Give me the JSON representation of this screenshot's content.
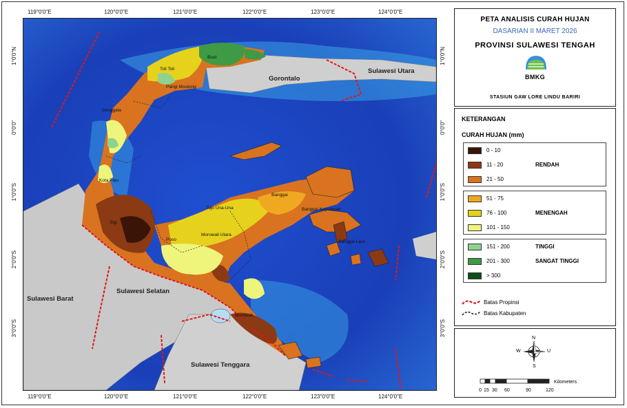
{
  "title": {
    "line1": "PETA ANALISIS CURAH HUJAN",
    "line2": "DASARIAN II MARET 2026",
    "line3": "PROVINSI SULAWESI TENGAH",
    "agency": "BMKG",
    "station": "STASIUN GAW LORE LINDU BARIRI"
  },
  "legend": {
    "heading": "KETERANGAN",
    "subheading": "CURAH HUJAN (mm)",
    "groups": [
      {
        "category": "RENDAH",
        "classes": [
          {
            "label": "0 - 10",
            "color": "#3b1408"
          },
          {
            "label": "11 - 20",
            "color": "#8b3a13"
          },
          {
            "label": "21 - 50",
            "color": "#d9731f"
          }
        ]
      },
      {
        "category": "MENENGAH",
        "classes": [
          {
            "label": "51 - 75",
            "color": "#f0a820"
          },
          {
            "label": "76 - 100",
            "color": "#e6d21c"
          },
          {
            "label": "101 - 150",
            "color": "#eef57a"
          }
        ]
      },
      {
        "category": "TINGGI",
        "classes": [
          {
            "label": "151 - 200",
            "color": "#8fd28f"
          }
        ]
      },
      {
        "category": "SANGAT TINGGI",
        "classes": [
          {
            "label": "201 - 300",
            "color": "#3f9a45"
          },
          {
            "label": "> 300",
            "color": "#0e4d17"
          }
        ]
      }
    ],
    "province_line": "Batas Propinsi",
    "district_line": "Batas Kabupaten"
  },
  "scalebar": {
    "unit": "Kilometers",
    "ticks": [
      "0",
      "15",
      "30",
      "60",
      "90",
      "120"
    ],
    "compass": {
      "n": "N",
      "s": "S",
      "w": "W",
      "e": "U"
    }
  },
  "axes": {
    "lon_ticks": [
      "119°0'0\"E",
      "120°0'0\"E",
      "121°0'0\"E",
      "122°0'0\"E",
      "123°0'0\"E",
      "124°0'0\"E"
    ],
    "lat_ticks": [
      "1°0'0\"N",
      "0°0'0\"",
      "1°0'0\"S",
      "2°0'0\"S",
      "3°0'0\"S"
    ]
  },
  "map_labels": {
    "regions": [
      "Gorontalo",
      "Sulawesi Utara",
      "Sulawesi Barat",
      "Sulawesi Selatan",
      "Sulawesi Tenggara"
    ],
    "districts": [
      "Buol",
      "Toli Toli",
      "Parigi Moutong",
      "Donggala",
      "Kota Palu",
      "Sigi",
      "Poso",
      "Tojo Una-Una",
      "Morowali Utara",
      "Banggai",
      "Banggai Kepulauan",
      "Banggai Laut",
      "Morowali"
    ]
  },
  "colors": {
    "sea_deep": "#1a3fb8",
    "sea_shallow": "#3aa3e6",
    "land_other": "#c9c9c9",
    "province_border": "#e01818"
  }
}
